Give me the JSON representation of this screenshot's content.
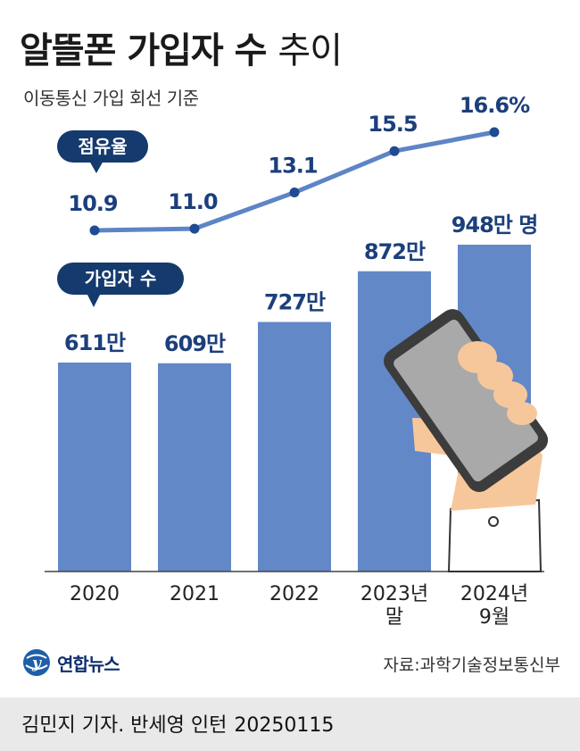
{
  "header": {
    "title_bold": "알뜰폰 가입자 수",
    "title_light": "추이",
    "subtitle": "이동통신 가입 회선 기준"
  },
  "badges": {
    "share": "점유율",
    "subscribers": "가입자 수"
  },
  "colors": {
    "bar": "#6288c8",
    "line": "#5d85c6",
    "point": "#1e4b91",
    "badge": "#143a6e",
    "value_text": "#1c3f7c"
  },
  "chart_data": {
    "type": "bar",
    "categories": [
      "2020",
      "2021",
      "2022",
      "2023년 말",
      "2024년 9월"
    ],
    "category_lines": [
      [
        "2020"
      ],
      [
        "2021"
      ],
      [
        "2022"
      ],
      [
        "2023년",
        "말"
      ],
      [
        "2024년",
        "9월"
      ]
    ],
    "series": [
      {
        "name": "가입자 수",
        "type": "bar",
        "values": [
          611,
          609,
          727,
          872,
          948
        ],
        "labels": [
          "611만",
          "609만",
          "727만",
          "872만",
          "948만 명"
        ]
      },
      {
        "name": "점유율",
        "type": "line",
        "values": [
          10.9,
          11.0,
          13.1,
          15.5,
          16.6
        ],
        "labels": [
          "10.9",
          "11.0",
          "13.1",
          "15.5",
          "16.6%"
        ]
      }
    ]
  },
  "logo": {
    "text": "연합뉴스"
  },
  "source": "자료:과학기술정보통신부",
  "credit": {
    "byline": "김민지 기자. 반세영 인턴",
    "date": "20250115"
  }
}
